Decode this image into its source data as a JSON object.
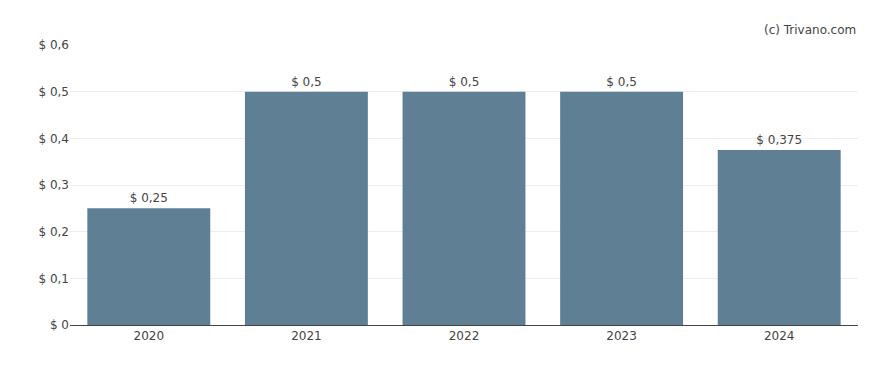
{
  "chart_data": {
    "type": "bar",
    "categories": [
      "2020",
      "2021",
      "2022",
      "2023",
      "2024"
    ],
    "values": [
      0.25,
      0.5,
      0.5,
      0.5,
      0.375
    ],
    "value_labels": [
      "$ 0,25",
      "$ 0,5",
      "$ 0,5",
      "$ 0,5",
      "$ 0,375"
    ],
    "data_labels": true,
    "color": "#5f7f94",
    "ylim": [
      0,
      0.6
    ],
    "yticks": [
      {
        "value": 0.0,
        "label": "$ 0"
      },
      {
        "value": 0.1,
        "label": "$ 0,1"
      },
      {
        "value": 0.2,
        "label": "$ 0,2"
      },
      {
        "value": 0.3,
        "label": "$ 0,3"
      },
      {
        "value": 0.4,
        "label": "$ 0,4"
      },
      {
        "value": 0.5,
        "label": "$ 0,5"
      },
      {
        "value": 0.6,
        "label": "$ 0,6"
      }
    ],
    "grid": true,
    "annotations": [
      "(c) Trivano.com"
    ]
  }
}
